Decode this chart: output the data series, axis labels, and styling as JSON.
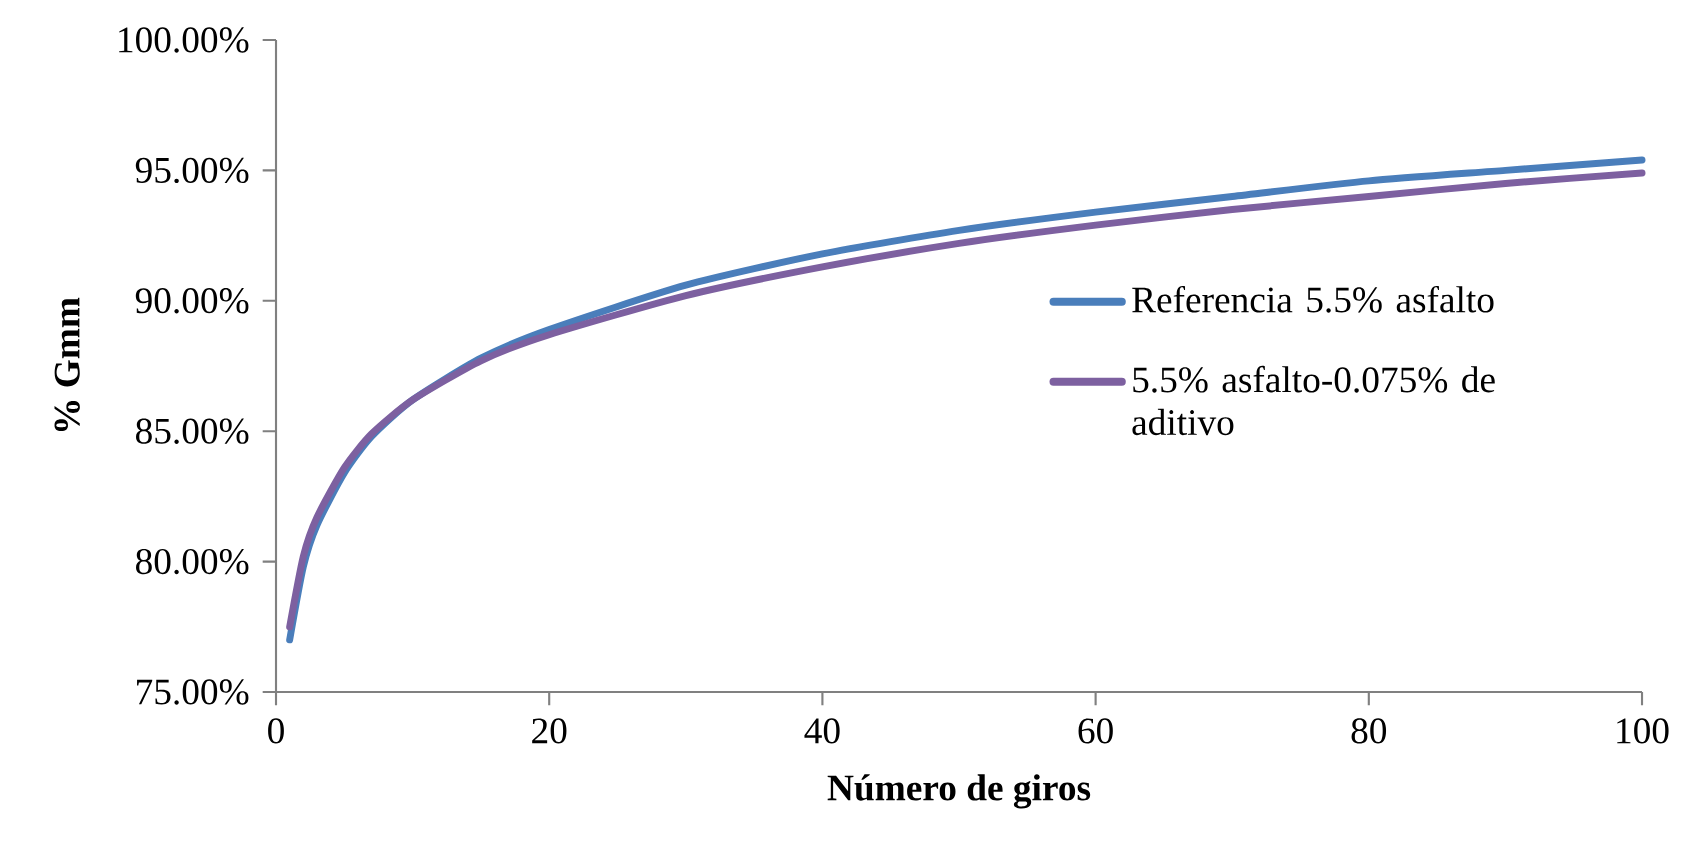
{
  "chart_data": {
    "type": "line",
    "xlabel": "Número de giros",
    "ylabel": "% Gmm",
    "x": [
      1,
      2,
      3,
      5,
      7,
      10,
      15,
      20,
      30,
      40,
      50,
      60,
      70,
      80,
      90,
      100
    ],
    "series": [
      {
        "name": "Referencia 5.5% asfalto",
        "color": "#4a7ebb",
        "values": [
          77.0,
          79.8,
          81.4,
          83.4,
          84.8,
          86.2,
          87.8,
          88.9,
          90.6,
          91.8,
          92.7,
          93.4,
          94.0,
          94.6,
          95.0,
          95.4
        ]
      },
      {
        "name": "5.5% asfalto-0.075% de aditivo",
        "color": "#7d60a0",
        "values": [
          77.5,
          80.2,
          81.7,
          83.6,
          84.9,
          86.2,
          87.7,
          88.7,
          90.2,
          91.3,
          92.2,
          92.9,
          93.5,
          94.0,
          94.5,
          94.9
        ]
      }
    ],
    "xlim": [
      0,
      100
    ],
    "xticks": [
      0,
      20,
      40,
      60,
      80,
      100
    ],
    "ylim": [
      75,
      100
    ],
    "yticks": [
      {
        "value": 75,
        "label": "75.00%"
      },
      {
        "value": 80,
        "label": "80.00%"
      },
      {
        "value": 85,
        "label": "85.00%"
      },
      {
        "value": 90,
        "label": "90.00%"
      },
      {
        "value": 95,
        "label": "95.00%"
      },
      {
        "value": 100,
        "label": "100.00%"
      }
    ],
    "legend": "right",
    "grid": false,
    "marker": "none",
    "line_style": "solid"
  }
}
